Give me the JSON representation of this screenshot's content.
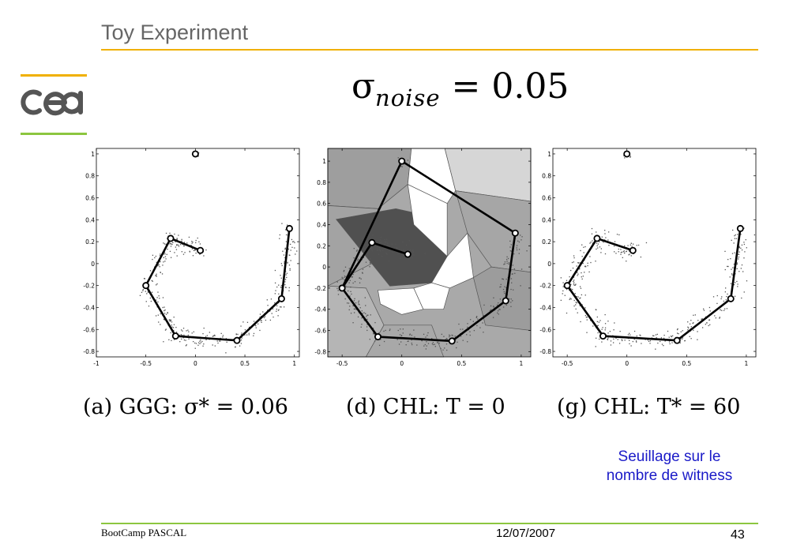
{
  "slide": {
    "title": "Toy Experiment",
    "formula": {
      "symbol": "σ",
      "subscript": "noise",
      "rest": " = 0.05"
    },
    "note_lines": [
      "Seuillage sur le",
      "nombre de witness"
    ],
    "footer": {
      "left": "BootCamp PASCAL",
      "date": "12/07/2007",
      "page": "43"
    },
    "logo": {
      "icon": "cea-logo-icon",
      "text": "cea",
      "accent": "#f0b000",
      "accent2": "#8cc63f"
    },
    "colors": {
      "title_rule": "#f0b000",
      "footer_rule": "#8cc63f",
      "note": "#1a1ac8"
    }
  },
  "chart_data": [
    {
      "type": "scatter",
      "caption": "(a) GGG: σ* = 0.06",
      "xlim": [
        -1,
        1.05
      ],
      "ylim": [
        -0.85,
        1.05
      ],
      "xticks": [
        -1,
        -0.5,
        0,
        0.5,
        1
      ],
      "yticks": [
        -0.8,
        -0.6,
        -0.4,
        -0.2,
        0,
        0.2,
        0.4,
        0.6,
        0.8,
        1
      ],
      "graph_nodes": [
        [
          0,
          1
        ],
        [
          0.05,
          0.12
        ],
        [
          -0.25,
          0.23
        ],
        [
          -0.5,
          -0.2
        ],
        [
          -0.2,
          -0.66
        ],
        [
          0.42,
          -0.7
        ],
        [
          0.87,
          -0.32
        ],
        [
          0.95,
          0.32
        ]
      ],
      "graph_edges": [
        [
          1,
          2
        ],
        [
          2,
          3
        ],
        [
          3,
          4
        ],
        [
          4,
          5
        ],
        [
          5,
          6
        ],
        [
          6,
          7
        ]
      ],
      "background": "none"
    },
    {
      "type": "scatter",
      "caption": "(d) CHL: T = 0",
      "xlim": [
        -0.62,
        1.08
      ],
      "ylim": [
        -0.85,
        1.12
      ],
      "xticks": [
        -0.5,
        0,
        0.5,
        1
      ],
      "yticks": [
        -0.8,
        -0.6,
        -0.4,
        -0.2,
        0,
        0.2,
        0.4,
        0.6,
        0.8,
        1
      ],
      "graph_nodes": [
        [
          0,
          1
        ],
        [
          0.05,
          0.12
        ],
        [
          -0.25,
          0.23
        ],
        [
          -0.5,
          -0.2
        ],
        [
          -0.2,
          -0.66
        ],
        [
          0.42,
          -0.7
        ],
        [
          0.87,
          -0.32
        ],
        [
          0.95,
          0.32
        ]
      ],
      "graph_edges": [
        [
          0,
          7
        ],
        [
          0,
          3
        ],
        [
          1,
          2
        ],
        [
          2,
          3
        ],
        [
          3,
          4
        ],
        [
          4,
          5
        ],
        [
          5,
          6
        ],
        [
          6,
          7
        ]
      ],
      "background": "voronoi"
    },
    {
      "type": "scatter",
      "caption": "(g) CHL: T* = 60",
      "xlim": [
        -0.62,
        1.08
      ],
      "ylim": [
        -0.85,
        1.05
      ],
      "xticks": [
        -0.5,
        0,
        0.5,
        1
      ],
      "yticks": [
        -0.8,
        -0.6,
        -0.4,
        -0.2,
        0,
        0.2,
        0.4,
        0.6,
        0.8,
        1
      ],
      "graph_nodes": [
        [
          0,
          1
        ],
        [
          0.05,
          0.12
        ],
        [
          -0.25,
          0.23
        ],
        [
          -0.5,
          -0.2
        ],
        [
          -0.2,
          -0.66
        ],
        [
          0.42,
          -0.7
        ],
        [
          0.87,
          -0.32
        ],
        [
          0.95,
          0.32
        ]
      ],
      "graph_edges": [
        [
          1,
          2
        ],
        [
          2,
          3
        ],
        [
          3,
          4
        ],
        [
          4,
          5
        ],
        [
          5,
          6
        ],
        [
          6,
          7
        ]
      ],
      "background": "none"
    }
  ]
}
